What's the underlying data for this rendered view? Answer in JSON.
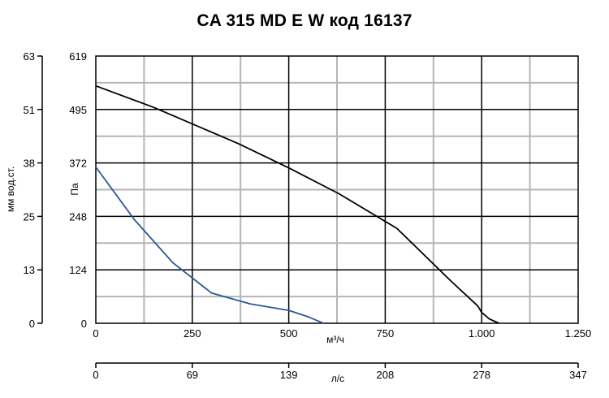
{
  "chart_data": {
    "type": "line",
    "title": "CA 315 MD E W код 16137",
    "x_primary": {
      "label": "м³/ч",
      "ticks": [
        "0",
        "250",
        "500",
        "750",
        "1.000",
        "1.250"
      ],
      "range": [
        0,
        1250
      ]
    },
    "x_secondary": {
      "label": "л/с",
      "ticks": [
        "0",
        "69",
        "139",
        "208",
        "278",
        "347"
      ]
    },
    "y_primary": {
      "label": "Па",
      "ticks": [
        "619",
        "495",
        "372",
        "248",
        "124",
        "0"
      ],
      "range": [
        0,
        619
      ]
    },
    "y_secondary": {
      "label": "мм вод.ст.",
      "ticks": [
        "63",
        "51",
        "38",
        "25",
        "13",
        "0"
      ]
    },
    "grid": true,
    "series": [
      {
        "color": "#000000",
        "x": [
          0,
          150,
          370,
          500,
          630,
          780,
          920,
          990,
          1000,
          1020,
          1045
        ],
        "y": [
          550,
          500,
          416,
          360,
          300,
          220,
          98,
          40,
          25,
          10,
          0
        ]
      },
      {
        "color": "#2b5797",
        "x": [
          0,
          100,
          200,
          300,
          400,
          500,
          550,
          590
        ],
        "y": [
          362,
          240,
          140,
          70,
          45,
          30,
          15,
          0
        ]
      }
    ]
  }
}
